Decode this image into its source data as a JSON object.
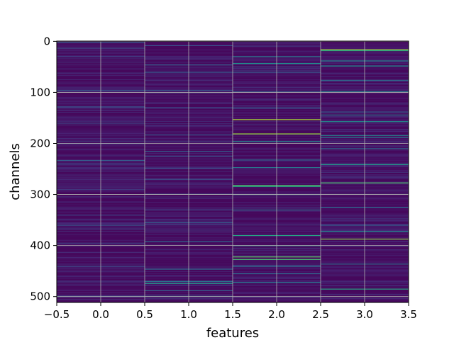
{
  "chart_data": {
    "type": "heatmap",
    "title": "",
    "xlabel": "features",
    "ylabel": "channels",
    "xlim": [
      -0.5,
      3.5
    ],
    "ylim": [
      511.5,
      -0.5
    ],
    "x_ticks": [
      -0.5,
      0.0,
      0.5,
      1.0,
      1.5,
      2.0,
      2.5,
      3.0,
      3.5
    ],
    "x_tick_labels": [
      "−0.5",
      "0.0",
      "0.5",
      "1.0",
      "1.5",
      "2.0",
      "2.5",
      "3.0",
      "3.5"
    ],
    "y_ticks": [
      0,
      100,
      200,
      300,
      400,
      500
    ],
    "y_tick_labels": [
      "0",
      "100",
      "200",
      "300",
      "400",
      "500"
    ],
    "grid": true,
    "colormap": "viridis",
    "value_range": [
      0,
      1
    ],
    "background_color": "#46085c",
    "n_rows": 512,
    "n_cols": 4,
    "notable_rows": [
      {
        "col": 0,
        "rows": [
          2,
          13,
          30,
          96,
          128,
          160,
          200,
          233,
          240,
          290,
          340,
          360,
          395,
          440,
          499
        ],
        "values": [
          0.3,
          0.25,
          0.2,
          0.28,
          0.25,
          0.22,
          0.2,
          0.3,
          0.25,
          0.18,
          0.22,
          0.25,
          0.2,
          0.22,
          0.25
        ]
      },
      {
        "col": 1,
        "rows": [
          8,
          46,
          60,
          96,
          130,
          183,
          215,
          225,
          248,
          270,
          299,
          330,
          355,
          392,
          446,
          470,
          474,
          488,
          499
        ],
        "values": [
          0.25,
          0.3,
          0.3,
          0.28,
          0.25,
          0.28,
          0.3,
          0.25,
          0.25,
          0.25,
          0.22,
          0.22,
          0.3,
          0.35,
          0.35,
          0.4,
          0.55,
          0.3,
          0.25
        ]
      },
      {
        "col": 2,
        "rows": [
          30,
          43,
          60,
          98,
          130,
          153,
          181,
          196,
          232,
          247,
          282,
          284,
          300,
          330,
          380,
          400,
          422,
          427,
          440,
          455,
          472
        ],
        "values": [
          0.45,
          0.5,
          0.3,
          0.3,
          0.3,
          0.88,
          0.85,
          0.45,
          0.35,
          0.4,
          0.72,
          0.6,
          0.35,
          0.35,
          0.6,
          0.5,
          0.75,
          0.7,
          0.4,
          0.35,
          0.4
        ]
      },
      {
        "col": 3,
        "rows": [
          16,
          18,
          38,
          48,
          76,
          98,
          138,
          144,
          157,
          184,
          188,
          210,
          241,
          277,
          325,
          360,
          372,
          387,
          436,
          485
        ],
        "values": [
          0.85,
          0.6,
          0.45,
          0.5,
          0.35,
          0.45,
          0.3,
          0.4,
          0.5,
          0.45,
          0.4,
          0.35,
          0.55,
          0.72,
          0.35,
          0.3,
          0.45,
          0.82,
          0.35,
          0.6
        ]
      }
    ]
  }
}
